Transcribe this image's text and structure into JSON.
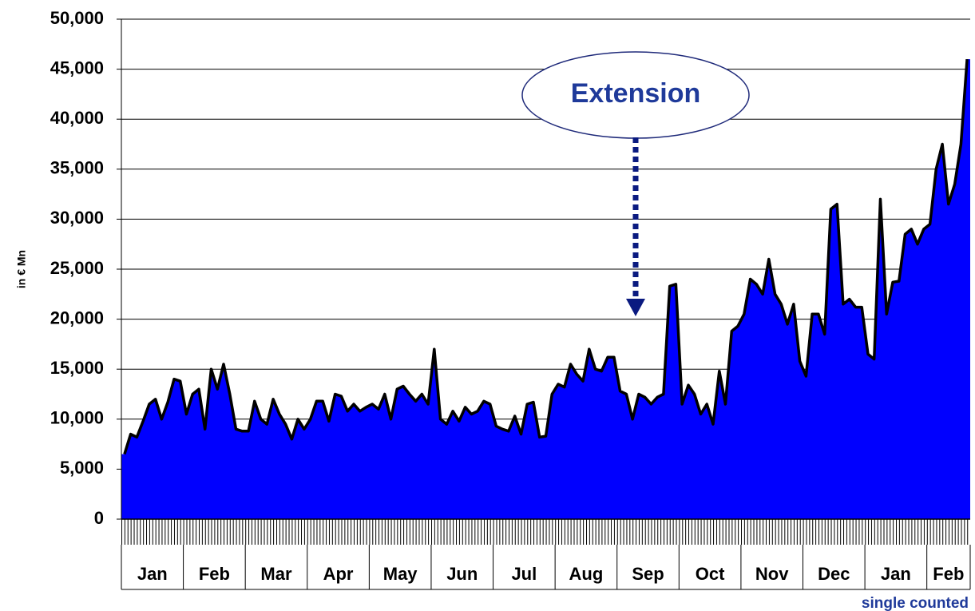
{
  "chart_data": {
    "type": "area",
    "y_label": "in € Mn",
    "annotation": "Extension",
    "note": "single counted",
    "color": "#0000ff",
    "line_color": "#000000",
    "grid": true,
    "ylim": [
      0,
      50000
    ],
    "yticks": [
      0,
      {
        "value": 5000,
        "label": "5,000"
      },
      {
        "value": 10000,
        "label": "10,000"
      },
      {
        "value": 15000,
        "label": "15,000"
      },
      {
        "value": 20000,
        "label": "20,000"
      },
      {
        "value": 25000,
        "label": "25,000"
      },
      {
        "value": 30000,
        "label": "30,000"
      },
      {
        "value": 35000,
        "label": "35,000"
      },
      {
        "value": 40000,
        "label": "40,000"
      },
      {
        "value": 45000,
        "label": "45,000"
      },
      {
        "value": 50000,
        "label": "50,000"
      }
    ],
    "categories": [
      "Jan",
      "Feb",
      "Mar",
      "Apr",
      "May",
      "Jun",
      "Jul",
      "Aug",
      "Sep",
      "Oct",
      "Nov",
      "Dec",
      "Jan",
      "Feb"
    ],
    "values": [
      [
        6500,
        8500,
        8200,
        9800,
        11500,
        12000,
        10000,
        11700,
        14000,
        13800
      ],
      [
        10500,
        12500,
        13000,
        9000,
        15000,
        13000,
        15500,
        12500,
        9000,
        8800
      ],
      [
        8800,
        11800,
        10000,
        9500,
        12000,
        10500,
        9500,
        8000,
        10000,
        9000
      ],
      [
        10000,
        11800,
        11800,
        9800,
        12500,
        12300,
        10800,
        11500,
        10800,
        11200
      ],
      [
        11500,
        11000,
        12500,
        10000,
        13000,
        13300,
        12500,
        11800,
        12500,
        11500
      ],
      [
        17000,
        10000,
        9500,
        10800,
        9800,
        11200,
        10500,
        10800,
        11800,
        11500
      ],
      [
        9300,
        9000,
        8800,
        10300,
        8500,
        11500,
        11700,
        8200,
        8300,
        12500
      ],
      [
        13500,
        13200,
        15500,
        14500,
        13800,
        17000,
        15000,
        14800,
        16200,
        16200
      ],
      [
        12800,
        12500,
        10000,
        12500,
        12200,
        11500,
        12200,
        12500,
        23300,
        23500
      ],
      [
        11500,
        13400,
        12500,
        10500,
        11500,
        9500,
        14800,
        11500,
        18800,
        19300
      ],
      [
        20500,
        24000,
        23500,
        22500,
        26000,
        22500,
        21500,
        19500,
        21500,
        15800
      ],
      [
        14300,
        20500,
        20500,
        18500,
        31000,
        31500,
        21500,
        22000,
        21200,
        21200
      ],
      [
        16500,
        16000,
        32000,
        20500,
        23700,
        23800,
        28500,
        29000,
        27500,
        29000
      ],
      [
        29500,
        35000,
        37500,
        31500,
        33500,
        37500,
        46000
      ]
    ]
  }
}
